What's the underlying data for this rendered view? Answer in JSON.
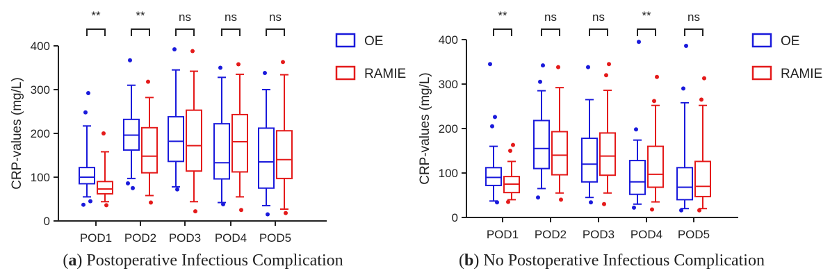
{
  "chart_data": [
    {
      "type": "boxplot",
      "panel_label": "a",
      "caption": "Postoperative Infectious Complication",
      "ylabel": "CRP-values (mg/L)",
      "ylim": [
        0,
        400
      ],
      "yticks": [
        0,
        100,
        200,
        300,
        400
      ],
      "categories": [
        "POD1",
        "POD2",
        "POD3",
        "POD4",
        "POD5"
      ],
      "significance": [
        "**",
        "**",
        "ns",
        "ns",
        "ns"
      ],
      "legend_position": "right",
      "series": [
        {
          "name": "OE",
          "color": "#1a1adb",
          "boxes": [
            {
              "whisker_low": 55,
              "q1": 85,
              "median": 100,
              "q3": 122,
              "whisker_high": 217,
              "outliers": [
                248,
                292,
                37,
                45
              ]
            },
            {
              "whisker_low": 97,
              "q1": 162,
              "median": 196,
              "q3": 232,
              "whisker_high": 310,
              "outliers": [
                367,
                75,
                86
              ]
            },
            {
              "whisker_low": 78,
              "q1": 136,
              "median": 182,
              "q3": 238,
              "whisker_high": 345,
              "outliers": [
                392,
                72
              ]
            },
            {
              "whisker_low": 42,
              "q1": 96,
              "median": 133,
              "q3": 222,
              "whisker_high": 328,
              "outliers": [
                350,
                38
              ]
            },
            {
              "whisker_low": 35,
              "q1": 75,
              "median": 135,
              "q3": 212,
              "whisker_high": 300,
              "outliers": [
                338,
                15
              ]
            }
          ]
        },
        {
          "name": "RAMIE",
          "color": "#e41a1a",
          "boxes": [
            {
              "whisker_low": 44,
              "q1": 62,
              "median": 73,
              "q3": 90,
              "whisker_high": 158,
              "outliers": [
                200,
                36
              ]
            },
            {
              "whisker_low": 58,
              "q1": 110,
              "median": 148,
              "q3": 213,
              "whisker_high": 282,
              "outliers": [
                318,
                42
              ]
            },
            {
              "whisker_low": 44,
              "q1": 114,
              "median": 172,
              "q3": 253,
              "whisker_high": 342,
              "outliers": [
                388,
                22
              ]
            },
            {
              "whisker_low": 55,
              "q1": 112,
              "median": 181,
              "q3": 243,
              "whisker_high": 335,
              "outliers": [
                358,
                25
              ]
            },
            {
              "whisker_low": 27,
              "q1": 97,
              "median": 140,
              "q3": 206,
              "whisker_high": 334,
              "outliers": [
                363,
                18
              ]
            }
          ]
        }
      ]
    },
    {
      "type": "boxplot",
      "panel_label": "b",
      "caption": "No Postoperative Infectious Complication",
      "ylabel": "CRP-values (mg/L)",
      "ylim": [
        0,
        400
      ],
      "yticks": [
        0,
        100,
        200,
        300,
        400
      ],
      "categories": [
        "POD1",
        "POD2",
        "POD3",
        "POD4",
        "POD5"
      ],
      "significance": [
        "**",
        "ns",
        "ns",
        "**",
        "ns"
      ],
      "legend_position": "right",
      "series": [
        {
          "name": "OE",
          "color": "#1a1adb",
          "boxes": [
            {
              "whisker_low": 37,
              "q1": 72,
              "median": 90,
              "q3": 112,
              "whisker_high": 160,
              "outliers": [
                205,
                226,
                345,
                34
              ]
            },
            {
              "whisker_low": 65,
              "q1": 110,
              "median": 155,
              "q3": 218,
              "whisker_high": 285,
              "outliers": [
                305,
                342,
                45
              ]
            },
            {
              "whisker_low": 45,
              "q1": 80,
              "median": 120,
              "q3": 178,
              "whisker_high": 265,
              "outliers": [
                338,
                34
              ]
            },
            {
              "whisker_low": 30,
              "q1": 52,
              "median": 80,
              "q3": 128,
              "whisker_high": 174,
              "outliers": [
                198,
                395,
                22
              ]
            },
            {
              "whisker_low": 20,
              "q1": 40,
              "median": 68,
              "q3": 112,
              "whisker_high": 258,
              "outliers": [
                290,
                386,
                16
              ]
            }
          ]
        },
        {
          "name": "RAMIE",
          "color": "#e41a1a",
          "boxes": [
            {
              "whisker_low": 40,
              "q1": 56,
              "median": 75,
              "q3": 92,
              "whisker_high": 126,
              "outliers": [
                150,
                163,
                35
              ]
            },
            {
              "whisker_low": 55,
              "q1": 96,
              "median": 140,
              "q3": 193,
              "whisker_high": 292,
              "outliers": [
                338,
                40
              ]
            },
            {
              "whisker_low": 55,
              "q1": 95,
              "median": 138,
              "q3": 190,
              "whisker_high": 286,
              "outliers": [
                320,
                345,
                30
              ]
            },
            {
              "whisker_low": 35,
              "q1": 68,
              "median": 97,
              "q3": 160,
              "whisker_high": 252,
              "outliers": [
                262,
                316,
                18
              ]
            },
            {
              "whisker_low": 20,
              "q1": 47,
              "median": 70,
              "q3": 126,
              "whisker_high": 252,
              "outliers": [
                265,
                313,
                16
              ]
            }
          ]
        }
      ]
    }
  ]
}
